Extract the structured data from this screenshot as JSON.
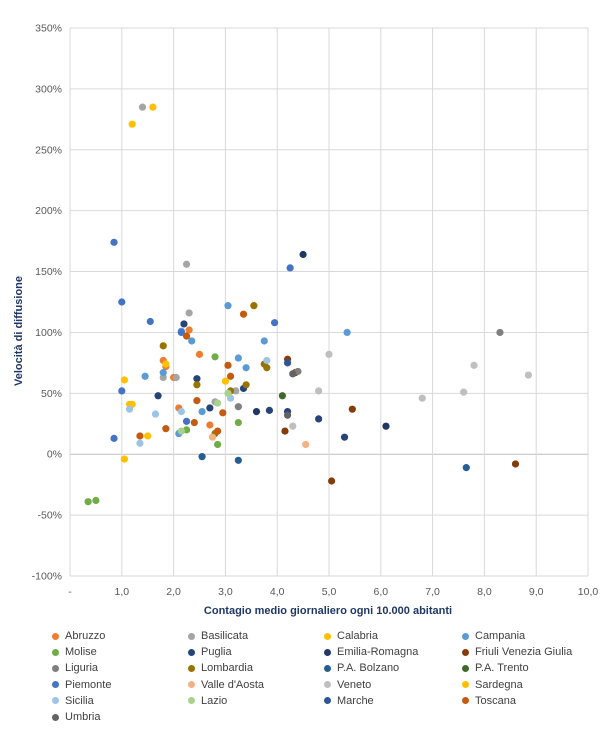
{
  "chart_data": {
    "type": "scatter",
    "xlabel": "Contagio medio giornaliero  ogni 10.000 abitanti",
    "ylabel": "Velocità di diffusione",
    "xlim": [
      0,
      10
    ],
    "ylim": [
      -100,
      350
    ],
    "x_ticks": [
      "-",
      "1,0",
      "2,0",
      "3,0",
      "4,0",
      "5,0",
      "6,0",
      "7,0",
      "8,0",
      "9,0",
      "10,0"
    ],
    "y_ticks": [
      "-100%",
      "-50%",
      "0%",
      "50%",
      "100%",
      "150%",
      "200%",
      "250%",
      "300%",
      "350%"
    ],
    "grid": true,
    "legend_position": "bottom",
    "series": [
      {
        "name": "Abruzzo",
        "color": "#ed7d31",
        "points": [
          [
            1.8,
            77
          ],
          [
            2.1,
            38
          ],
          [
            2.5,
            82
          ],
          [
            1.85,
            72
          ],
          [
            2.7,
            24
          ],
          [
            2.0,
            63
          ],
          [
            2.3,
            102
          ]
        ]
      },
      {
        "name": "Basilicata",
        "color": "#a5a5a5",
        "points": [
          [
            1.4,
            285
          ],
          [
            2.25,
            156
          ],
          [
            1.8,
            63
          ],
          [
            2.3,
            116
          ],
          [
            3.2,
            52
          ],
          [
            2.05,
            63
          ],
          [
            2.8,
            43
          ]
        ]
      },
      {
        "name": "Calabria",
        "color": "#ffc000",
        "points": [
          [
            1.6,
            285
          ],
          [
            1.2,
            271
          ],
          [
            1.05,
            61
          ],
          [
            1.85,
            74
          ],
          [
            1.2,
            41
          ],
          [
            1.05,
            -4
          ],
          [
            1.5,
            15
          ],
          [
            3.0,
            60
          ]
        ]
      },
      {
        "name": "Campania",
        "color": "#5b9bd5",
        "points": [
          [
            5.35,
            100
          ],
          [
            3.05,
            122
          ],
          [
            2.15,
            101
          ],
          [
            2.35,
            93
          ],
          [
            3.75,
            93
          ],
          [
            2.1,
            17
          ],
          [
            3.25,
            79
          ],
          [
            1.45,
            64
          ],
          [
            3.4,
            71
          ],
          [
            1.8,
            67
          ],
          [
            2.55,
            35
          ]
        ]
      },
      {
        "name": "Molise",
        "color": "#70ad47",
        "points": [
          [
            0.35,
            -39
          ],
          [
            0.5,
            -38
          ],
          [
            2.8,
            80
          ],
          [
            2.25,
            20
          ],
          [
            3.25,
            26
          ],
          [
            2.85,
            8
          ]
        ]
      },
      {
        "name": "Puglia",
        "color": "#264478",
        "points": [
          [
            2.2,
            107
          ],
          [
            2.45,
            62
          ],
          [
            1.7,
            48
          ],
          [
            2.7,
            38
          ],
          [
            3.35,
            54
          ],
          [
            3.85,
            36
          ],
          [
            5.3,
            14
          ],
          [
            4.8,
            29
          ],
          [
            4.2,
            35
          ]
        ]
      },
      {
        "name": "Emilia-Romagna",
        "color": "#1f3864",
        "points": [
          [
            4.5,
            164
          ],
          [
            6.1,
            23
          ],
          [
            3.6,
            35
          ]
        ]
      },
      {
        "name": "Friuli Venezia Giulia",
        "color": "#843c0c",
        "points": [
          [
            8.6,
            -8
          ],
          [
            5.05,
            -22
          ],
          [
            5.45,
            37
          ],
          [
            4.15,
            19
          ],
          [
            4.2,
            78
          ],
          [
            4.35,
            67
          ]
        ]
      },
      {
        "name": "Liguria",
        "color": "#7f7f7f",
        "points": [
          [
            8.3,
            100
          ],
          [
            4.4,
            68
          ],
          [
            3.25,
            39
          ]
        ]
      },
      {
        "name": "Lombardia",
        "color": "#997300",
        "points": [
          [
            3.55,
            122
          ],
          [
            1.8,
            89
          ],
          [
            3.75,
            74
          ],
          [
            3.4,
            57
          ],
          [
            3.8,
            71
          ],
          [
            2.8,
            17
          ],
          [
            2.45,
            57
          ],
          [
            3.1,
            52
          ]
        ]
      },
      {
        "name": "P.A. Bolzano",
        "color": "#255e91",
        "points": [
          [
            7.65,
            -11
          ],
          [
            3.25,
            -5
          ],
          [
            2.55,
            -2
          ]
        ]
      },
      {
        "name": "P.A. Trento",
        "color": "#43682b",
        "points": [
          [
            4.1,
            48
          ]
        ]
      },
      {
        "name": "Piemonte",
        "color": "#4472c4",
        "points": [
          [
            0.85,
            174
          ],
          [
            1.0,
            125
          ],
          [
            1.55,
            109
          ],
          [
            4.25,
            153
          ],
          [
            3.95,
            108
          ],
          [
            2.15,
            100
          ],
          [
            1.0,
            52
          ],
          [
            0.85,
            13
          ],
          [
            2.25,
            27
          ]
        ]
      },
      {
        "name": "Valle d'Aosta",
        "color": "#f4b183",
        "points": [
          [
            4.55,
            8
          ],
          [
            2.75,
            14
          ]
        ]
      },
      {
        "name": "Veneto",
        "color": "#bfbfbf",
        "points": [
          [
            8.85,
            65
          ],
          [
            7.8,
            73
          ],
          [
            7.6,
            51
          ],
          [
            6.8,
            46
          ],
          [
            5.0,
            82
          ],
          [
            4.8,
            52
          ],
          [
            4.3,
            23
          ]
        ]
      },
      {
        "name": "Sardegna",
        "color": "#ffc000",
        "points": [
          [
            1.15,
            41
          ]
        ]
      },
      {
        "name": "Sicilia",
        "color": "#9dc3e6",
        "points": [
          [
            1.15,
            37
          ],
          [
            1.65,
            33
          ],
          [
            1.35,
            9
          ],
          [
            2.15,
            35
          ],
          [
            3.1,
            46
          ],
          [
            3.8,
            77
          ]
        ]
      },
      {
        "name": "Lazio",
        "color": "#a9d18e",
        "points": [
          [
            2.15,
            19
          ],
          [
            2.85,
            42
          ],
          [
            3.05,
            50
          ]
        ]
      },
      {
        "name": "Marche",
        "color": "#2f5597",
        "points": [
          [
            4.2,
            75
          ]
        ]
      },
      {
        "name": "Toscana",
        "color": "#c55a11",
        "points": [
          [
            3.35,
            115
          ],
          [
            2.25,
            97
          ],
          [
            1.35,
            15
          ],
          [
            1.85,
            21
          ],
          [
            2.4,
            26
          ],
          [
            2.85,
            19
          ],
          [
            3.1,
            64
          ],
          [
            2.95,
            34
          ],
          [
            3.05,
            73
          ],
          [
            2.45,
            44
          ]
        ]
      },
      {
        "name": "Umbria",
        "color": "#636363",
        "points": [
          [
            4.3,
            66
          ],
          [
            4.2,
            32
          ]
        ]
      }
    ]
  }
}
